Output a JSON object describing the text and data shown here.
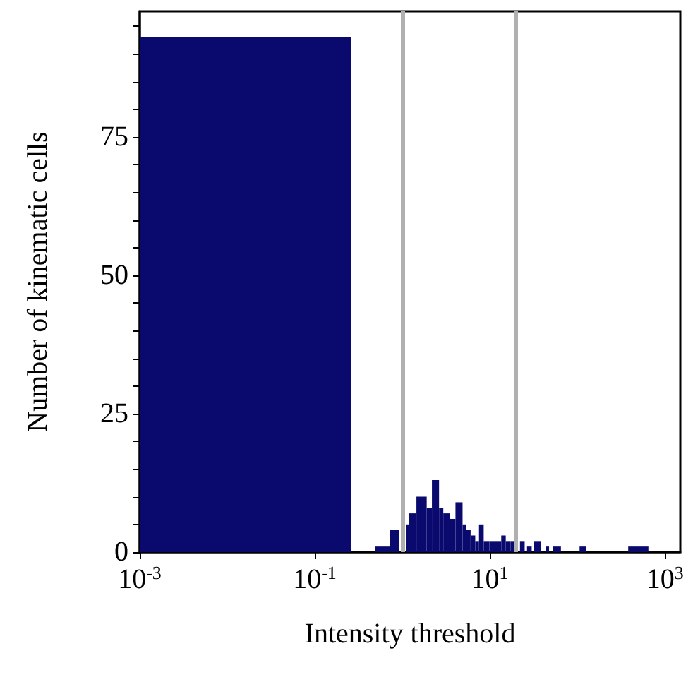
{
  "chart_data": {
    "type": "histogram",
    "xlabel": "Intensity threshold",
    "ylabel": "Number of kinematic cells",
    "color": "#0a0a6e",
    "log": "x",
    "grid": false,
    "bins": [
      0.001,
      0.262,
      0.488,
      0.716,
      0.916,
      1.1,
      1.2,
      1.45,
      1.9,
      2.18,
      2.63,
      2.94,
      3.49,
      4.05,
      4.88,
      5.32,
      6.03,
      6.81,
      7.52,
      8.51,
      9.88,
      13.5,
      15.2,
      17.3,
      19.5,
      22.1,
      25.0,
      26.6,
      30.1,
      32.0,
      38.5,
      43.6,
      47.5,
      52.5,
      64.9,
      106,
      125,
      381,
      648
    ],
    "values": [
      93,
      0,
      1,
      4,
      null,
      5,
      7,
      10,
      8,
      13,
      8,
      7,
      6,
      9,
      5,
      4,
      3,
      2,
      5,
      2,
      2,
      3,
      2,
      2,
      null,
      2,
      0,
      1,
      0,
      2,
      0,
      1,
      0,
      1,
      0,
      1,
      0,
      1
    ],
    "xlim": [
      0.001,
      1500
    ],
    "xticks": [
      {
        "value": 0.001,
        "label": "10$^{-3}$"
      },
      {
        "value": 0.1,
        "label": "10$^{-1}$"
      },
      {
        "value": 10,
        "label": "10$^{1}$"
      },
      {
        "value": 1000,
        "label": "10$^{3}$"
      }
    ],
    "ylim": [
      0,
      97.7
    ],
    "yticks": [
      0,
      {
        "value": 5,
        "label": null
      },
      {
        "value": 10,
        "label": null
      },
      {
        "value": 15,
        "label": null
      },
      {
        "value": 20,
        "label": null
      },
      25,
      {
        "value": 30,
        "label": null
      },
      {
        "value": 35,
        "label": null
      },
      {
        "value": 40,
        "label": null
      },
      {
        "value": 45,
        "label": null
      },
      50,
      {
        "value": 55,
        "label": null
      },
      {
        "value": 60,
        "label": null
      },
      {
        "value": 65,
        "label": null
      },
      {
        "value": 70,
        "label": null
      },
      75,
      {
        "value": 80,
        "label": null
      },
      {
        "value": 85,
        "label": null
      },
      {
        "value": 90,
        "label": null
      },
      {
        "value": 95,
        "label": null
      }
    ],
    "ref_lines": [
      {
        "axis": "x",
        "value": 1,
        "color": "#b0b0b0"
      },
      {
        "axis": "x",
        "value": 20,
        "color": "#b0b0b0"
      }
    ]
  }
}
